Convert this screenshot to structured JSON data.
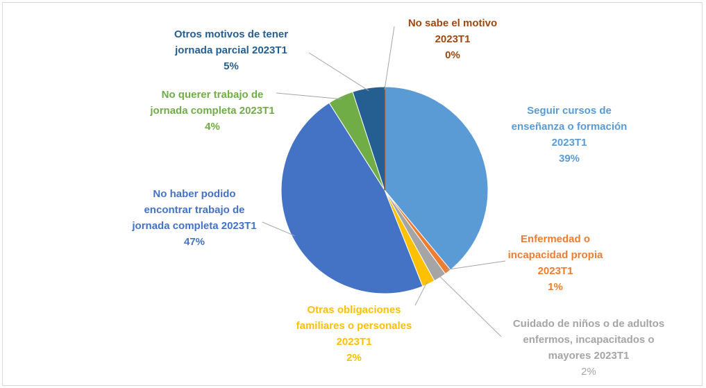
{
  "chart_data": {
    "type": "pie",
    "categories": [
      "Seguir cursos de enseñanza o formación 2023T1",
      "Enfermedad o incapacidad propia 2023T1",
      "Cuidado de niños o de adultos enfermos, incapacitados o mayores 2023T1",
      "Otras obligaciones familiares o personales 2023T1",
      "No haber podido encontrar trabajo de jornada completa 2023T1",
      "No querer trabajo de jornada completa 2023T1",
      "Otros motivos de tener jornada parcial 2023T1",
      "No sabe el motivo 2023T1"
    ],
    "values": [
      39,
      1,
      2,
      2,
      47,
      4,
      5,
      0
    ],
    "value_labels": [
      "39%",
      "1%",
      "2%",
      "2%",
      "47%",
      "4%",
      "5%",
      "0%"
    ],
    "colors": [
      "#5b9bd5",
      "#ed7d31",
      "#a5a5a5",
      "#ffc000",
      "#4472c4",
      "#70ad47",
      "#255e91",
      "#9e480e"
    ]
  }
}
